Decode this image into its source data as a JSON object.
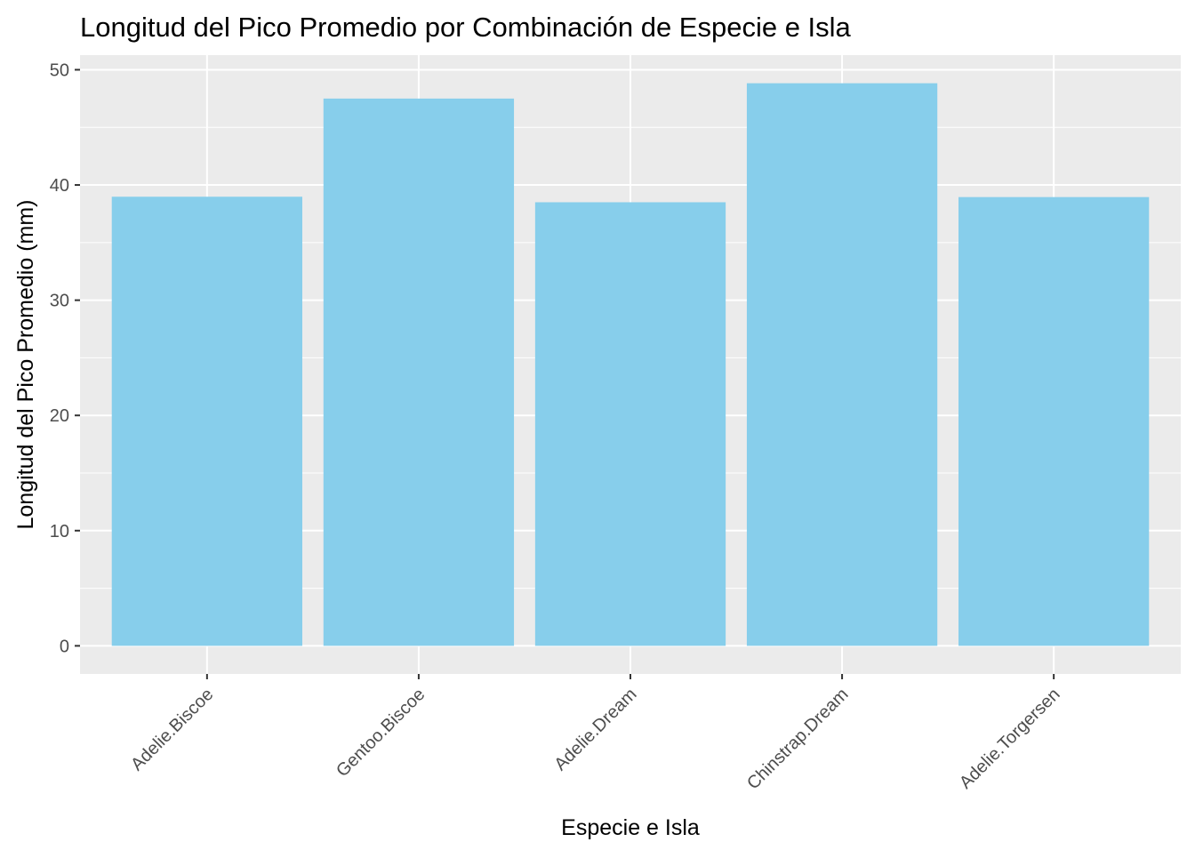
{
  "chart_data": {
    "type": "bar",
    "title": "Longitud del Pico Promedio por Combinación de Especie e Isla",
    "xlabel": "Especie e Isla",
    "ylabel": "Longitud del Pico Promedio (mm)",
    "categories": [
      "Adelie.Biscoe",
      "Gentoo.Biscoe",
      "Adelie.Dream",
      "Chinstrap.Dream",
      "Adelie.Torgersen"
    ],
    "values": [
      38.98,
      47.5,
      38.5,
      48.83,
      38.95
    ],
    "yticks": [
      0,
      10,
      20,
      30,
      40,
      50
    ],
    "ylim": [
      -2.44,
      51.27
    ],
    "grid": true,
    "legend": "none",
    "colors": {
      "bar": "#87ceeb",
      "panel": "#ebebeb",
      "grid": "#ffffff",
      "tick_text": "#4d4d4d",
      "tick_mark": "#333333"
    }
  }
}
